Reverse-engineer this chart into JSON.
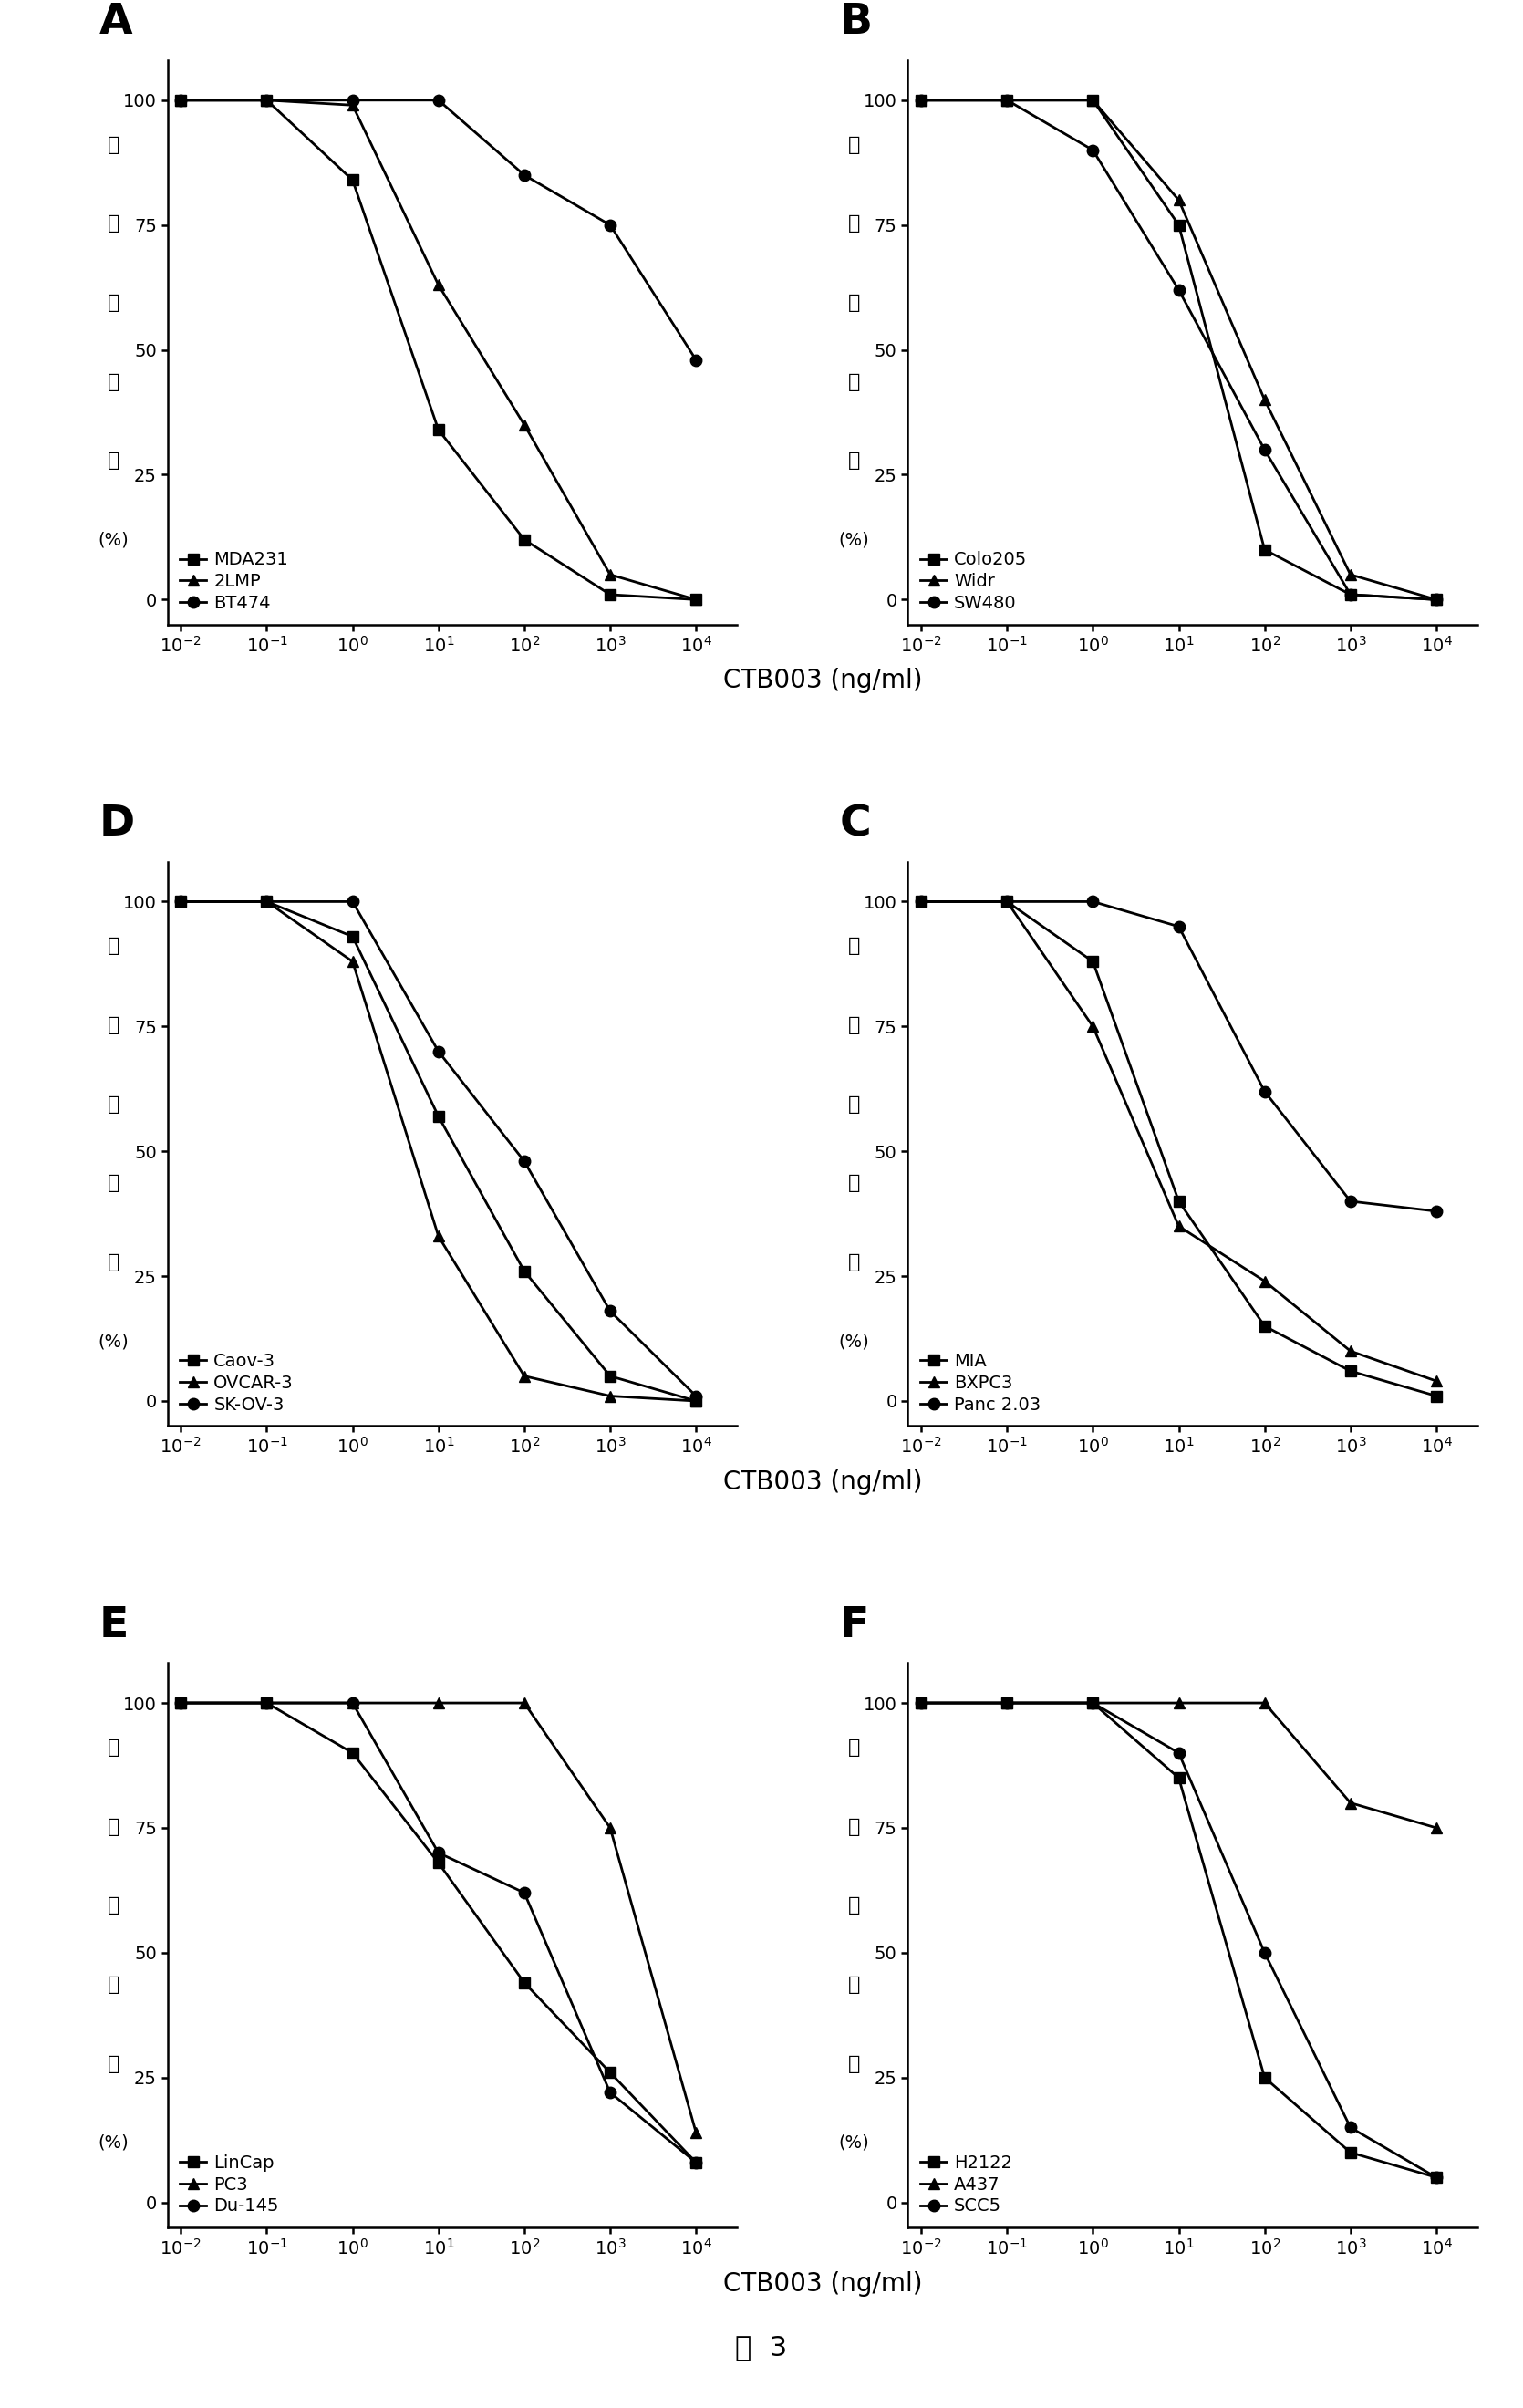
{
  "panels": [
    {
      "label": "A",
      "row": 0,
      "col": 0,
      "series": [
        {
          "name": "MDA231",
          "marker": "s",
          "x": [
            0.01,
            0.1,
            1,
            10,
            100,
            1000,
            10000
          ],
          "y": [
            100,
            100,
            84,
            34,
            12,
            1,
            0
          ]
        },
        {
          "name": "2LMP",
          "marker": "^",
          "x": [
            0.01,
            0.1,
            1,
            10,
            100,
            1000,
            10000
          ],
          "y": [
            100,
            100,
            99,
            63,
            35,
            5,
            0
          ]
        },
        {
          "name": "BT474",
          "marker": "o",
          "x": [
            0.01,
            0.1,
            1,
            10,
            100,
            1000,
            10000
          ],
          "y": [
            100,
            100,
            100,
            100,
            85,
            75,
            48
          ]
        }
      ]
    },
    {
      "label": "B",
      "row": 0,
      "col": 1,
      "series": [
        {
          "name": "Colo205",
          "marker": "s",
          "x": [
            0.01,
            0.1,
            1,
            10,
            100,
            1000,
            10000
          ],
          "y": [
            100,
            100,
            100,
            75,
            10,
            1,
            0
          ]
        },
        {
          "name": "Widr",
          "marker": "^",
          "x": [
            0.01,
            0.1,
            1,
            10,
            100,
            1000,
            10000
          ],
          "y": [
            100,
            100,
            100,
            80,
            40,
            5,
            0
          ]
        },
        {
          "name": "SW480",
          "marker": "o",
          "x": [
            0.01,
            0.1,
            1,
            10,
            100,
            1000,
            10000
          ],
          "y": [
            100,
            100,
            90,
            62,
            30,
            1,
            0
          ]
        }
      ]
    },
    {
      "label": "D",
      "row": 1,
      "col": 0,
      "series": [
        {
          "name": "Caov-3",
          "marker": "s",
          "x": [
            0.01,
            0.1,
            1,
            10,
            100,
            1000,
            10000
          ],
          "y": [
            100,
            100,
            93,
            57,
            26,
            5,
            0
          ]
        },
        {
          "name": "OVCAR-3",
          "marker": "^",
          "x": [
            0.01,
            0.1,
            1,
            10,
            100,
            1000,
            10000
          ],
          "y": [
            100,
            100,
            88,
            33,
            5,
            1,
            0
          ]
        },
        {
          "name": "SK-OV-3",
          "marker": "o",
          "x": [
            0.01,
            0.1,
            1,
            10,
            100,
            1000,
            10000
          ],
          "y": [
            100,
            100,
            100,
            70,
            48,
            18,
            1
          ]
        }
      ]
    },
    {
      "label": "C",
      "row": 1,
      "col": 1,
      "series": [
        {
          "name": "MIA",
          "marker": "s",
          "x": [
            0.01,
            0.1,
            1,
            10,
            100,
            1000,
            10000
          ],
          "y": [
            100,
            100,
            88,
            40,
            15,
            6,
            1
          ]
        },
        {
          "name": "BXPC3",
          "marker": "^",
          "x": [
            0.01,
            0.1,
            1,
            10,
            100,
            1000,
            10000
          ],
          "y": [
            100,
            100,
            75,
            35,
            24,
            10,
            4
          ]
        },
        {
          "name": "Panc 2.03",
          "marker": "o",
          "x": [
            0.01,
            0.1,
            1,
            10,
            100,
            1000,
            10000
          ],
          "y": [
            100,
            100,
            100,
            95,
            62,
            40,
            38
          ]
        }
      ]
    },
    {
      "label": "E",
      "row": 2,
      "col": 0,
      "series": [
        {
          "name": "LinCap",
          "marker": "s",
          "x": [
            0.01,
            0.1,
            1,
            10,
            100,
            1000,
            10000
          ],
          "y": [
            100,
            100,
            90,
            68,
            44,
            26,
            8
          ]
        },
        {
          "name": "PC3",
          "marker": "^",
          "x": [
            0.01,
            0.1,
            1,
            10,
            100,
            1000,
            10000
          ],
          "y": [
            100,
            100,
            100,
            100,
            100,
            75,
            14
          ]
        },
        {
          "name": "Du-145",
          "marker": "o",
          "x": [
            0.01,
            0.1,
            1,
            10,
            100,
            1000,
            10000
          ],
          "y": [
            100,
            100,
            100,
            70,
            62,
            22,
            8
          ]
        }
      ]
    },
    {
      "label": "F",
      "row": 2,
      "col": 1,
      "series": [
        {
          "name": "H2122",
          "marker": "s",
          "x": [
            0.01,
            0.1,
            1,
            10,
            100,
            1000,
            10000
          ],
          "y": [
            100,
            100,
            100,
            85,
            25,
            10,
            5
          ]
        },
        {
          "name": "A437",
          "marker": "^",
          "x": [
            0.01,
            0.1,
            1,
            10,
            100,
            1000,
            10000
          ],
          "y": [
            100,
            100,
            100,
            100,
            100,
            80,
            75
          ]
        },
        {
          "name": "SCC5",
          "marker": "o",
          "x": [
            0.01,
            0.1,
            1,
            10,
            100,
            1000,
            10000
          ],
          "y": [
            100,
            100,
            100,
            90,
            50,
            15,
            5
          ]
        }
      ]
    }
  ],
  "ylabel_chars": [
    "细",
    "胞",
    "存",
    "活",
    "率",
    "(%)",
    ""
  ],
  "ylabel_str": "细胞存活率 (%)",
  "xlabel_str": "CTB003 (ng/ml)",
  "figure_caption": "图  3",
  "line_color": "#000000",
  "marker_size": 9,
  "line_width": 2.0,
  "label_fontsize": 16,
  "tick_fontsize": 14,
  "legend_fontsize": 14,
  "panel_label_fontsize": 34,
  "xlabel_fontsize": 20,
  "caption_fontsize": 22,
  "background_color": "#ffffff"
}
